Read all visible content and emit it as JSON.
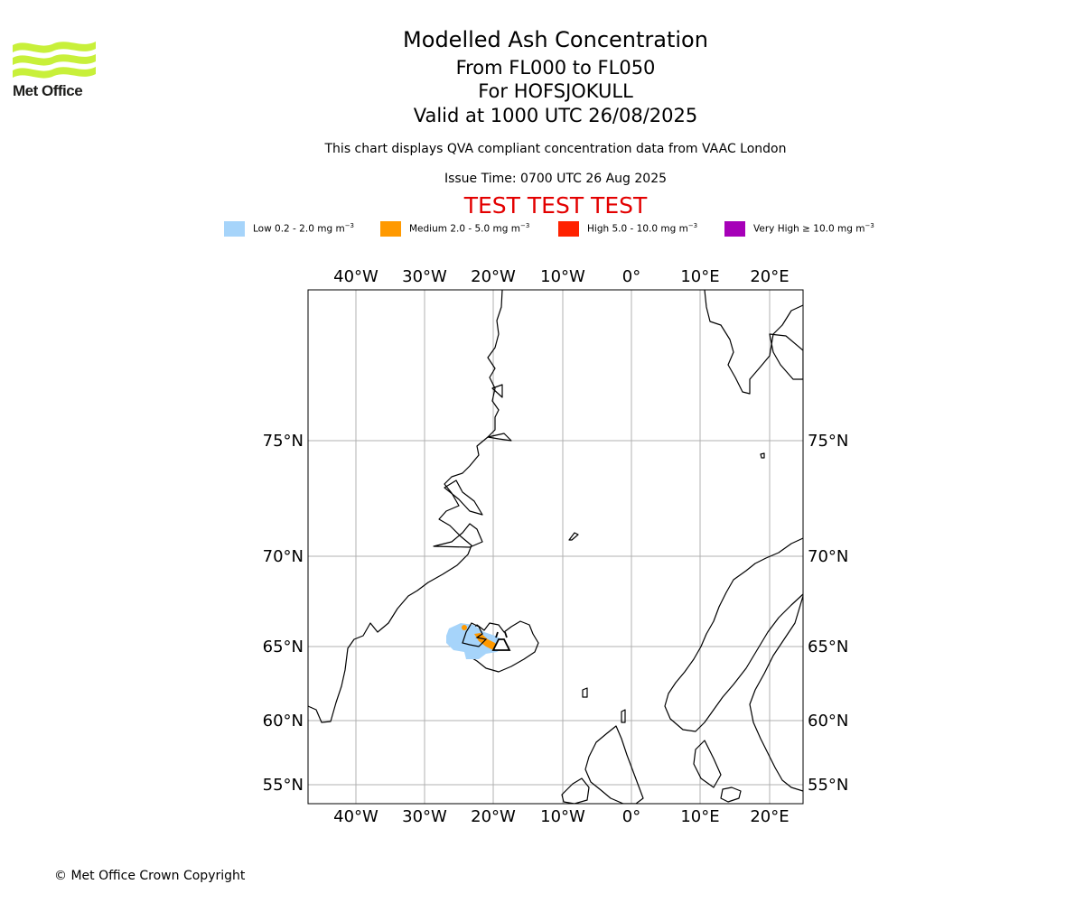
{
  "header": {
    "title": "Modelled Ash Concentration",
    "levels": "From FL000 to FL050",
    "volcano": "For HOFSJOKULL",
    "valid": "Valid at 1000 UTC 26/08/2025",
    "subtitle": "This chart displays QVA compliant concentration data from VAAC London",
    "issue_time": "Issue Time: 0700 UTC 26 Aug 2025",
    "test_banner": "TEST TEST TEST"
  },
  "logo": {
    "text": "Met Office",
    "icon": "met-office-wave-logo"
  },
  "legend": [
    {
      "label": "Low 0.2 - 2.0 mg m",
      "color": "#a6d4fa"
    },
    {
      "label": "Medium 2.0 - 5.0 mg m",
      "color": "#ff9900"
    },
    {
      "label": "High 5.0 - 10.0 mg m",
      "color": "#ff2200"
    },
    {
      "label": "Very High ≥ 10.0 mg m",
      "color": "#a600b8"
    }
  ],
  "legend_unit_exp": "−3",
  "map": {
    "lon_labels": [
      "40°W",
      "30°W",
      "20°W",
      "10°W",
      "0°",
      "10°E",
      "20°E"
    ],
    "lat_labels": [
      "75°N",
      "70°N",
      "65°N",
      "60°N",
      "55°N"
    ],
    "ash_levels_present": [
      "Low",
      "Medium"
    ],
    "volcano_symbol": "volcano-icon"
  },
  "footer": {
    "copyright": "© Met Office Crown Copyright"
  }
}
